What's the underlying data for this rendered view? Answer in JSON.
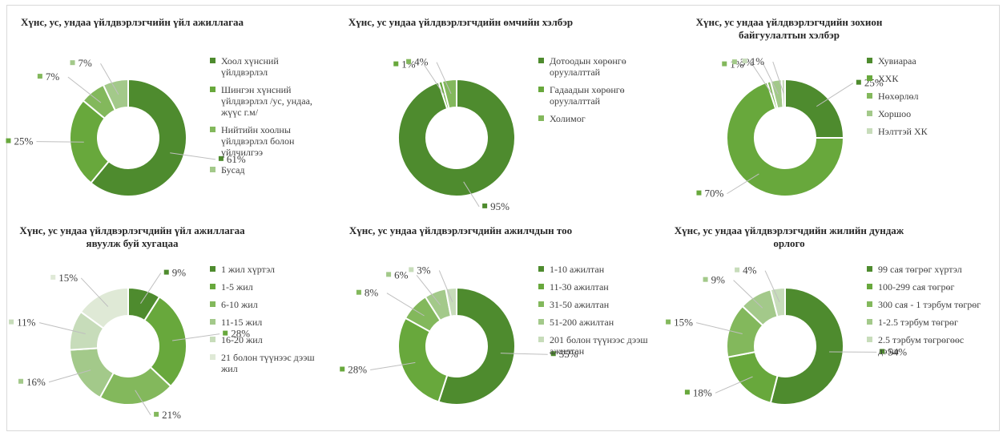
{
  "colors": {
    "background": "#ffffff",
    "text": "#404040",
    "leader_line": "#bfbfbf",
    "palette": [
      "#4e8b2e",
      "#68a83c",
      "#83b85c",
      "#a3c98a",
      "#c7dcba",
      "#dfe9d6"
    ]
  },
  "chart_data": [
    {
      "type": "donut",
      "title": "Хүнс, ус, ундаа үйлдвэрлэгчийн үйл ажиллагаа",
      "categories": [
        "Хоол хүнсний үйлдвэрлэл",
        "Шингэн хүнсний үйлдвэрлэл /ус, ундаа, жүүс г.м/",
        "Нийтийн хоолны үйлдвэрлэл болон үйлчилгээ",
        "Бусад"
      ],
      "values": [
        61,
        25,
        7,
        7
      ],
      "labels": [
        "61%",
        "25%",
        "7%",
        "7%"
      ],
      "legend": "right"
    },
    {
      "type": "donut",
      "title": "Хүнс, ус ундаа үйлдвэрлэгчдийн өмчийн хэлбэр",
      "categories": [
        "Дотоодын хөрөнгө оруулалттай",
        "Гадаадын хөрөнгө оруулалттай",
        "Холимог"
      ],
      "values": [
        95,
        1,
        4
      ],
      "labels": [
        "95%",
        "1%",
        "4%"
      ],
      "legend": "right"
    },
    {
      "type": "donut",
      "title": "Хүнс, ус ундаа үйлдвэрлэгчдийн зохион байгуулалтын хэлбэр",
      "categories": [
        "Хувиараа",
        "ХХК",
        "Нөхөрлөл",
        "Хоршоо",
        "Нэлттэй ХК"
      ],
      "values": [
        25,
        70,
        1,
        3,
        1
      ],
      "labels": [
        "25%",
        "70%",
        "1%",
        "3%",
        "1%"
      ],
      "legend": "right"
    },
    {
      "type": "donut",
      "title": "Хүнс, ус ундаа үйлдвэрлэгчдийн үйл ажиллагаа явуулж буй хугацаа",
      "categories": [
        "1 жил хүртэл",
        "1-5 жил",
        "6-10 жил",
        "11-15 жил",
        "16-20 жил",
        "21 болон түүнээс дээш жил"
      ],
      "values": [
        9,
        28,
        21,
        16,
        11,
        15
      ],
      "labels": [
        "9%",
        "28%",
        "21%",
        "16%",
        "11%",
        "15%"
      ],
      "legend": "right"
    },
    {
      "type": "donut",
      "title": "Хүнс, ус ундаа үйлдвэрлэгчдийн ажилчдын тоо",
      "categories": [
        "1-10 ажилтан",
        "11-30 ажилтан",
        "31-50 ажилтан",
        "51-200 ажилтан",
        "201 болон түүнээс дээш ажилтан"
      ],
      "values": [
        55,
        28,
        8,
        6,
        3
      ],
      "labels": [
        "55%",
        "28%",
        "8%",
        "6%",
        "3%"
      ],
      "legend": "right"
    },
    {
      "type": "donut",
      "title": "Хүнс, ус ундаа үйлдвэрлэгчдийн жилийн дундаж орлого",
      "categories": [
        "99 сая төгрөг хүртэл",
        "100-299 сая төгрөг",
        "300 сая - 1 тэрбум төгрөг",
        "1-2.5 тэрбум төгрөг",
        "2.5 тэрбум төгрөгөөс дээш"
      ],
      "values": [
        54,
        18,
        15,
        9,
        4
      ],
      "labels": [
        "54%",
        "18%",
        "15%",
        "9%",
        "4%"
      ],
      "legend": "right"
    }
  ]
}
